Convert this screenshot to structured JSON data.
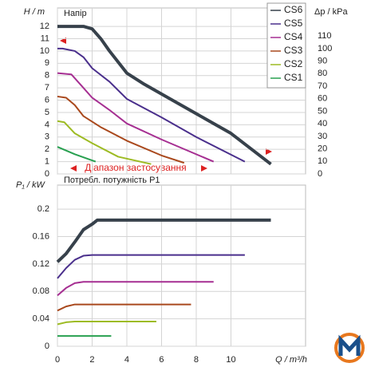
{
  "chart_data": [
    {
      "type": "line",
      "title": "Напір",
      "y_label": "H / m",
      "y2_label": "Δp / kPa",
      "annotation": "Діапазон застосування",
      "xlim": [
        0,
        14.3
      ],
      "xticks": [
        0,
        2,
        4,
        6,
        8,
        10
      ],
      "ylim": [
        0,
        13.5
      ],
      "yticks": [
        0,
        1,
        2,
        3,
        4,
        5,
        6,
        7,
        8,
        9,
        10,
        11,
        12
      ],
      "y2lim": [
        0,
        132.4
      ],
      "y2ticks": [
        0,
        10,
        20,
        30,
        40,
        50,
        60,
        70,
        80,
        90,
        100,
        110
      ],
      "grid": true,
      "legend": "upper right",
      "series": [
        {
          "name": "CS6",
          "color": "#37414b",
          "x": [
            0,
            1.5,
            2,
            2.5,
            3,
            4,
            5,
            8,
            10,
            12.3
          ],
          "values": [
            12,
            12,
            11.8,
            11,
            10,
            8.2,
            7.3,
            4.9,
            3.3,
            0.8
          ]
        },
        {
          "name": "CS5",
          "color": "#4a2f8c",
          "x": [
            0,
            0.3,
            1,
            1.5,
            2,
            3,
            4,
            6,
            8,
            10.8
          ],
          "values": [
            10.2,
            10.2,
            10,
            9.5,
            8.6,
            7.5,
            6.1,
            4.6,
            3,
            1
          ]
        },
        {
          "name": "CS4",
          "color": "#a62f92",
          "x": [
            0,
            0.8,
            1.5,
            2,
            3,
            4,
            6,
            9
          ],
          "values": [
            8.2,
            8.1,
            7,
            6.2,
            5.2,
            4.1,
            2.8,
            1
          ]
        },
        {
          "name": "CS3",
          "color": "#a9481c",
          "x": [
            0,
            0.5,
            1,
            1.5,
            2.5,
            4,
            6,
            7.3
          ],
          "values": [
            6.3,
            6.2,
            5.6,
            4.7,
            3.8,
            2.7,
            1.5,
            0.9
          ]
        },
        {
          "name": "CS2",
          "color": "#9dbb23",
          "x": [
            0,
            0.4,
            1,
            2,
            3.5,
            5.4
          ],
          "values": [
            4.3,
            4.2,
            3.3,
            2.5,
            1.4,
            0.8
          ]
        },
        {
          "name": "CS1",
          "color": "#28a050",
          "x": [
            0,
            1,
            2,
            2.2
          ],
          "values": [
            2.2,
            1.6,
            1.1,
            1
          ]
        }
      ]
    },
    {
      "type": "line",
      "title": "Потребл. потужність P1",
      "y_label": "P₁ / kW",
      "x_label": "Q / m³/h",
      "xlim": [
        0,
        14.3
      ],
      "xticks": [
        0,
        2,
        4,
        6,
        8,
        10
      ],
      "ylim": [
        0,
        0.235
      ],
      "yticks": [
        0,
        0.04,
        0.08,
        0.12,
        0.16,
        0.2
      ],
      "grid": true,
      "series": [
        {
          "color": "#37414b",
          "x": [
            0,
            0.5,
            1,
            1.5,
            2,
            2.3,
            12.3
          ],
          "values": [
            0.123,
            0.135,
            0.152,
            0.17,
            0.178,
            0.184,
            0.184
          ]
        },
        {
          "color": "#4a2f8c",
          "x": [
            0,
            0.5,
            1,
            1.5,
            2,
            10.8
          ],
          "values": [
            0.099,
            0.114,
            0.126,
            0.132,
            0.133,
            0.133
          ]
        },
        {
          "color": "#a62f92",
          "x": [
            0,
            0.5,
            1,
            1.5,
            9
          ],
          "values": [
            0.074,
            0.085,
            0.092,
            0.094,
            0.094
          ]
        },
        {
          "color": "#a9481c",
          "x": [
            0,
            0.5,
            1,
            7.7
          ],
          "values": [
            0.052,
            0.058,
            0.061,
            0.061
          ]
        },
        {
          "color": "#9dbb23",
          "x": [
            0,
            0.5,
            1,
            5.7
          ],
          "values": [
            0.032,
            0.035,
            0.036,
            0.036
          ]
        },
        {
          "color": "#28a050",
          "x": [
            0,
            3.1
          ],
          "values": [
            0.015,
            0.015
          ]
        }
      ]
    }
  ]
}
